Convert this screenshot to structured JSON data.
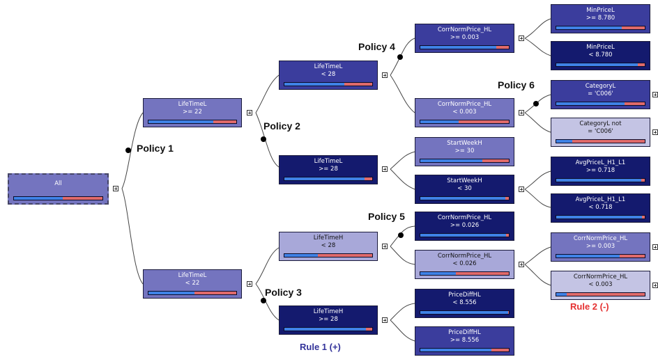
{
  "nodes": {
    "root": {
      "line1": "All",
      "line2": "",
      "blue": 0.55
    },
    "n1": {
      "line1": "LifeTimeL",
      "line2": ">= 22",
      "blue": 0.74
    },
    "n2": {
      "line1": "LifeTimeL",
      "line2": "< 22",
      "blue": 0.52
    },
    "n11": {
      "line1": "LifeTimeL",
      "line2": "< 28",
      "blue": 0.68
    },
    "n12": {
      "line1": "LifeTimeL",
      "line2": ">= 28",
      "blue": 0.91
    },
    "n21": {
      "line1": "LifeTimeH",
      "line2": "< 28",
      "blue": 0.38
    },
    "n22": {
      "line1": "LifeTimeH",
      "line2": ">= 28",
      "blue": 0.93
    },
    "n111": {
      "line1": "CorrNormPrice_HL",
      "line2": ">= 0.003",
      "blue": 0.86
    },
    "n112": {
      "line1": "CorrNormPrice_HL",
      "line2": "< 0.003",
      "blue": 0.43
    },
    "n121": {
      "line1": "StartWeekH",
      "line2": ">= 30",
      "blue": 0.7
    },
    "n122": {
      "line1": "StartWeekH",
      "line2": "< 30",
      "blue": 0.96
    },
    "n211": {
      "line1": "CorrNormPrice_HL",
      "line2": ">= 0.026",
      "blue": 0.97
    },
    "n212": {
      "line1": "CorrNormPrice_HL",
      "line2": "< 0.026",
      "blue": 0.4
    },
    "n221": {
      "line1": "PriceDiffHL",
      "line2": "< 8.556",
      "blue": 0.99
    },
    "n222": {
      "line1": "PriceDiffHL",
      "line2": ">= 8.556",
      "blue": 0.8
    },
    "n1111": {
      "line1": "MinPriceL",
      "line2": ">= 8.780",
      "blue": 0.74
    },
    "n1112": {
      "line1": "MinPriceL",
      "line2": "< 8.780",
      "blue": 0.92
    },
    "n1121": {
      "line1": "CategoryL",
      "line2": "= 'C006'",
      "blue": 0.77
    },
    "n1122": {
      "line1": "CategoryL not",
      "line2": "= 'C006'",
      "blue": 0.18
    },
    "n1221": {
      "line1": "AvgPriceL_H1_L1",
      "line2": ">= 0.718",
      "blue": 0.96
    },
    "n1222": {
      "line1": "AvgPriceL_H1_L1",
      "line2": "< 0.718",
      "blue": 0.97
    },
    "n2121": {
      "line1": "CorrNormPrice_HL",
      "line2": ">= 0.003",
      "blue": 0.72
    },
    "n2122": {
      "line1": "CorrNormPrice_HL",
      "line2": "< 0.003",
      "blue": 0.12
    }
  },
  "policies": [
    "Policy 1",
    "Policy 2",
    "Policy 3",
    "Policy 4",
    "Policy 5",
    "Policy 6"
  ],
  "rules": {
    "rule1": "Rule 1 (+)",
    "rule2": "Rule 2 (-)"
  },
  "colors": {
    "bar_blue": "#3f82e6",
    "bar_red": "#e06a6a",
    "rule1": "#33339a",
    "rule2": "#e53030"
  }
}
